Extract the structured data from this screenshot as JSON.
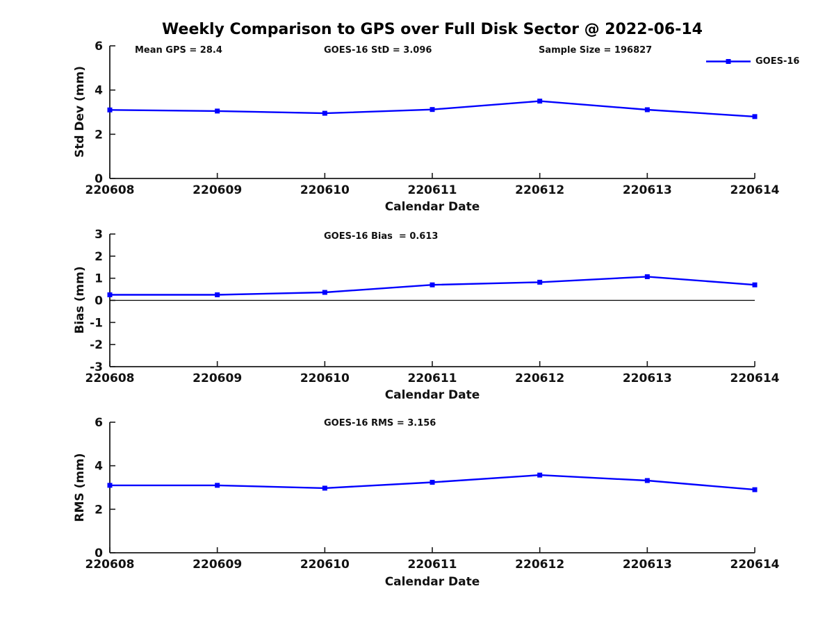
{
  "figure": {
    "title": "Weekly Comparison to GPS over Full Disk Sector @ 2022-06-14",
    "line_color": "#0000ff",
    "legend": {
      "label": "GOES-16",
      "marker": "square"
    }
  },
  "chart_data": [
    {
      "type": "line",
      "categories": [
        "220608",
        "220609",
        "220610",
        "220611",
        "220612",
        "220613",
        "220614"
      ],
      "series": [
        {
          "name": "GOES-16",
          "values": [
            3.1,
            3.05,
            2.95,
            3.12,
            3.5,
            3.11,
            2.8
          ]
        }
      ],
      "xlabel": "Calendar Date",
      "ylabel": "Std Dev (mm)",
      "ylim": [
        0,
        6
      ],
      "yticks": [
        0,
        2,
        4,
        6
      ],
      "grid": false,
      "zero_line": false,
      "legend_position": "top-right",
      "annotations": [
        "Mean GPS = 28.4",
        "GOES-16 StD = 3.096",
        "Sample Size = 196827"
      ]
    },
    {
      "type": "line",
      "categories": [
        "220608",
        "220609",
        "220610",
        "220611",
        "220612",
        "220613",
        "220614"
      ],
      "series": [
        {
          "name": "GOES-16",
          "values": [
            0.25,
            0.25,
            0.36,
            0.7,
            0.82,
            1.07,
            0.7
          ]
        }
      ],
      "xlabel": "Calendar Date",
      "ylabel": "Bias (mm)",
      "ylim": [
        -3,
        3
      ],
      "yticks": [
        -3,
        -2,
        -1,
        0,
        1,
        2,
        3
      ],
      "grid": false,
      "zero_line": true,
      "legend_position": "none",
      "annotations": [
        "GOES-16 Bias  = 0.613"
      ]
    },
    {
      "type": "line",
      "categories": [
        "220608",
        "220609",
        "220610",
        "220611",
        "220612",
        "220613",
        "220614"
      ],
      "series": [
        {
          "name": "GOES-16",
          "values": [
            3.1,
            3.1,
            2.97,
            3.24,
            3.57,
            3.32,
            2.9
          ]
        }
      ],
      "xlabel": "Calendar Date",
      "ylabel": "RMS (mm)",
      "ylim": [
        0,
        6
      ],
      "yticks": [
        0,
        2,
        4,
        6
      ],
      "grid": false,
      "zero_line": false,
      "legend_position": "none",
      "annotations": [
        "GOES-16 RMS = 3.156"
      ]
    }
  ]
}
